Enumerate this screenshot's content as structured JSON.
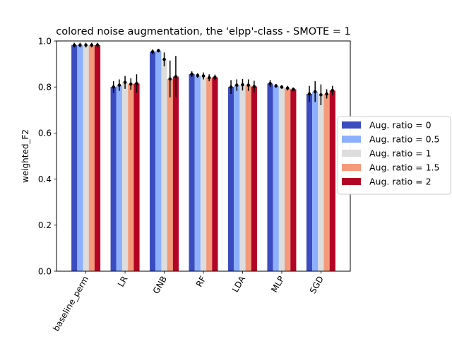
{
  "chart_data": {
    "type": "bar",
    "title": "colored noise augmentation, the 'elpp'-class - SMOTE = 1",
    "xlabel": "",
    "ylabel": "weighted_F2",
    "ylim": [
      0,
      1.0
    ],
    "yticks": [
      "0.0",
      "0.2",
      "0.4",
      "0.6",
      "0.8",
      "1.0"
    ],
    "categories": [
      "baseline_perm",
      "LR",
      "GNB",
      "RF",
      "LDA",
      "MLP",
      "SGD"
    ],
    "legend_position": "center-right, outside plot",
    "series": [
      {
        "name": "Aug. ratio = 0",
        "color": "#3b4cc0",
        "values": [
          0.982,
          0.8,
          0.953,
          0.856,
          0.8,
          0.815,
          0.77
        ],
        "errors": [
          0.01,
          0.025,
          0.01,
          0.012,
          0.03,
          0.015,
          0.035
        ]
      },
      {
        "name": "Aug. ratio = 0.5",
        "color": "#8db0fe",
        "values": [
          0.982,
          0.808,
          0.958,
          0.85,
          0.808,
          0.805,
          0.78
        ],
        "errors": [
          0.01,
          0.025,
          0.008,
          0.01,
          0.025,
          0.008,
          0.045
        ]
      },
      {
        "name": "Aug. ratio = 1",
        "color": "#dddddd",
        "values": [
          0.982,
          0.82,
          0.92,
          0.848,
          0.81,
          0.8,
          0.766
        ],
        "errors": [
          0.01,
          0.028,
          0.03,
          0.015,
          0.025,
          0.008,
          0.045
        ]
      },
      {
        "name": "Aug. ratio = 1.5",
        "color": "#f49a7b",
        "values": [
          0.982,
          0.813,
          0.835,
          0.84,
          0.808,
          0.795,
          0.77
        ],
        "errors": [
          0.01,
          0.025,
          0.08,
          0.015,
          0.025,
          0.01,
          0.02
        ]
      },
      {
        "name": "Aug. ratio = 2",
        "color": "#b40426",
        "values": [
          0.982,
          0.815,
          0.845,
          0.842,
          0.802,
          0.79,
          0.785
        ],
        "errors": [
          0.01,
          0.04,
          0.09,
          0.012,
          0.025,
          0.008,
          0.02
        ]
      }
    ]
  }
}
